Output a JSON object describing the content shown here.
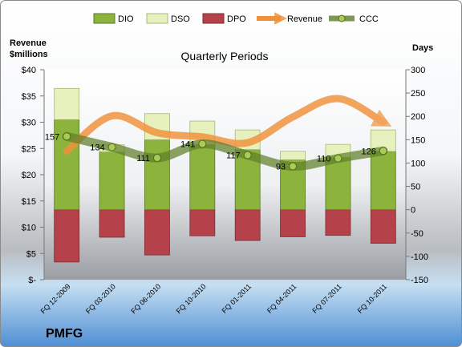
{
  "chart_data": {
    "type": "bar",
    "title": "Quarterly Periods",
    "brand": "PMFG",
    "left_axis": {
      "label_line1": "Revenue",
      "label_line2": "$millions",
      "range": [
        0,
        40
      ],
      "ticks": [
        "$-",
        "$5",
        "$10",
        "$15",
        "$20",
        "$25",
        "$30",
        "$35",
        "$40"
      ]
    },
    "right_axis": {
      "label": "Days",
      "range": [
        -150,
        300
      ],
      "ticks": [
        "-150",
        "-100",
        "-50",
        "0",
        "50",
        "100",
        "150",
        "200",
        "250",
        "300"
      ]
    },
    "categories": [
      "FQ 12-2009",
      "FQ 03-2010",
      "FQ 06-2010",
      "FQ 10-2010",
      "FQ 01-2011",
      "FQ 04-2011",
      "FQ 07-2011",
      "FQ 10-2011"
    ],
    "series": [
      {
        "name": "DIO",
        "axis": "right",
        "values": [
          193,
          124,
          150,
          140,
          129,
          107,
          112,
          125
        ]
      },
      {
        "name": "DSO",
        "axis": "right",
        "values": [
          67,
          15,
          56,
          50,
          42,
          18,
          28,
          46
        ]
      },
      {
        "name": "DPO",
        "axis": "right",
        "values": [
          -112,
          -59,
          -97,
          -56,
          -66,
          -58,
          -55,
          -72
        ]
      },
      {
        "name": "Revenue",
        "axis": "left",
        "values": [
          24.5,
          31.2,
          28.0,
          27.2,
          26.1,
          31.0,
          34.5,
          30.0
        ]
      },
      {
        "name": "CCC",
        "axis": "right",
        "values": [
          157,
          134,
          111,
          141,
          117,
          93,
          110,
          126
        ],
        "labels": [
          "157",
          "134",
          "111",
          "141",
          "117",
          "93",
          "110",
          "126"
        ]
      }
    ],
    "colors": {
      "DIO": "#8cb43c",
      "DSO": "#e6f1bd",
      "DPO": "#b5424a",
      "Revenue": "#f0913a",
      "CCC": "#5f7f2a"
    }
  }
}
